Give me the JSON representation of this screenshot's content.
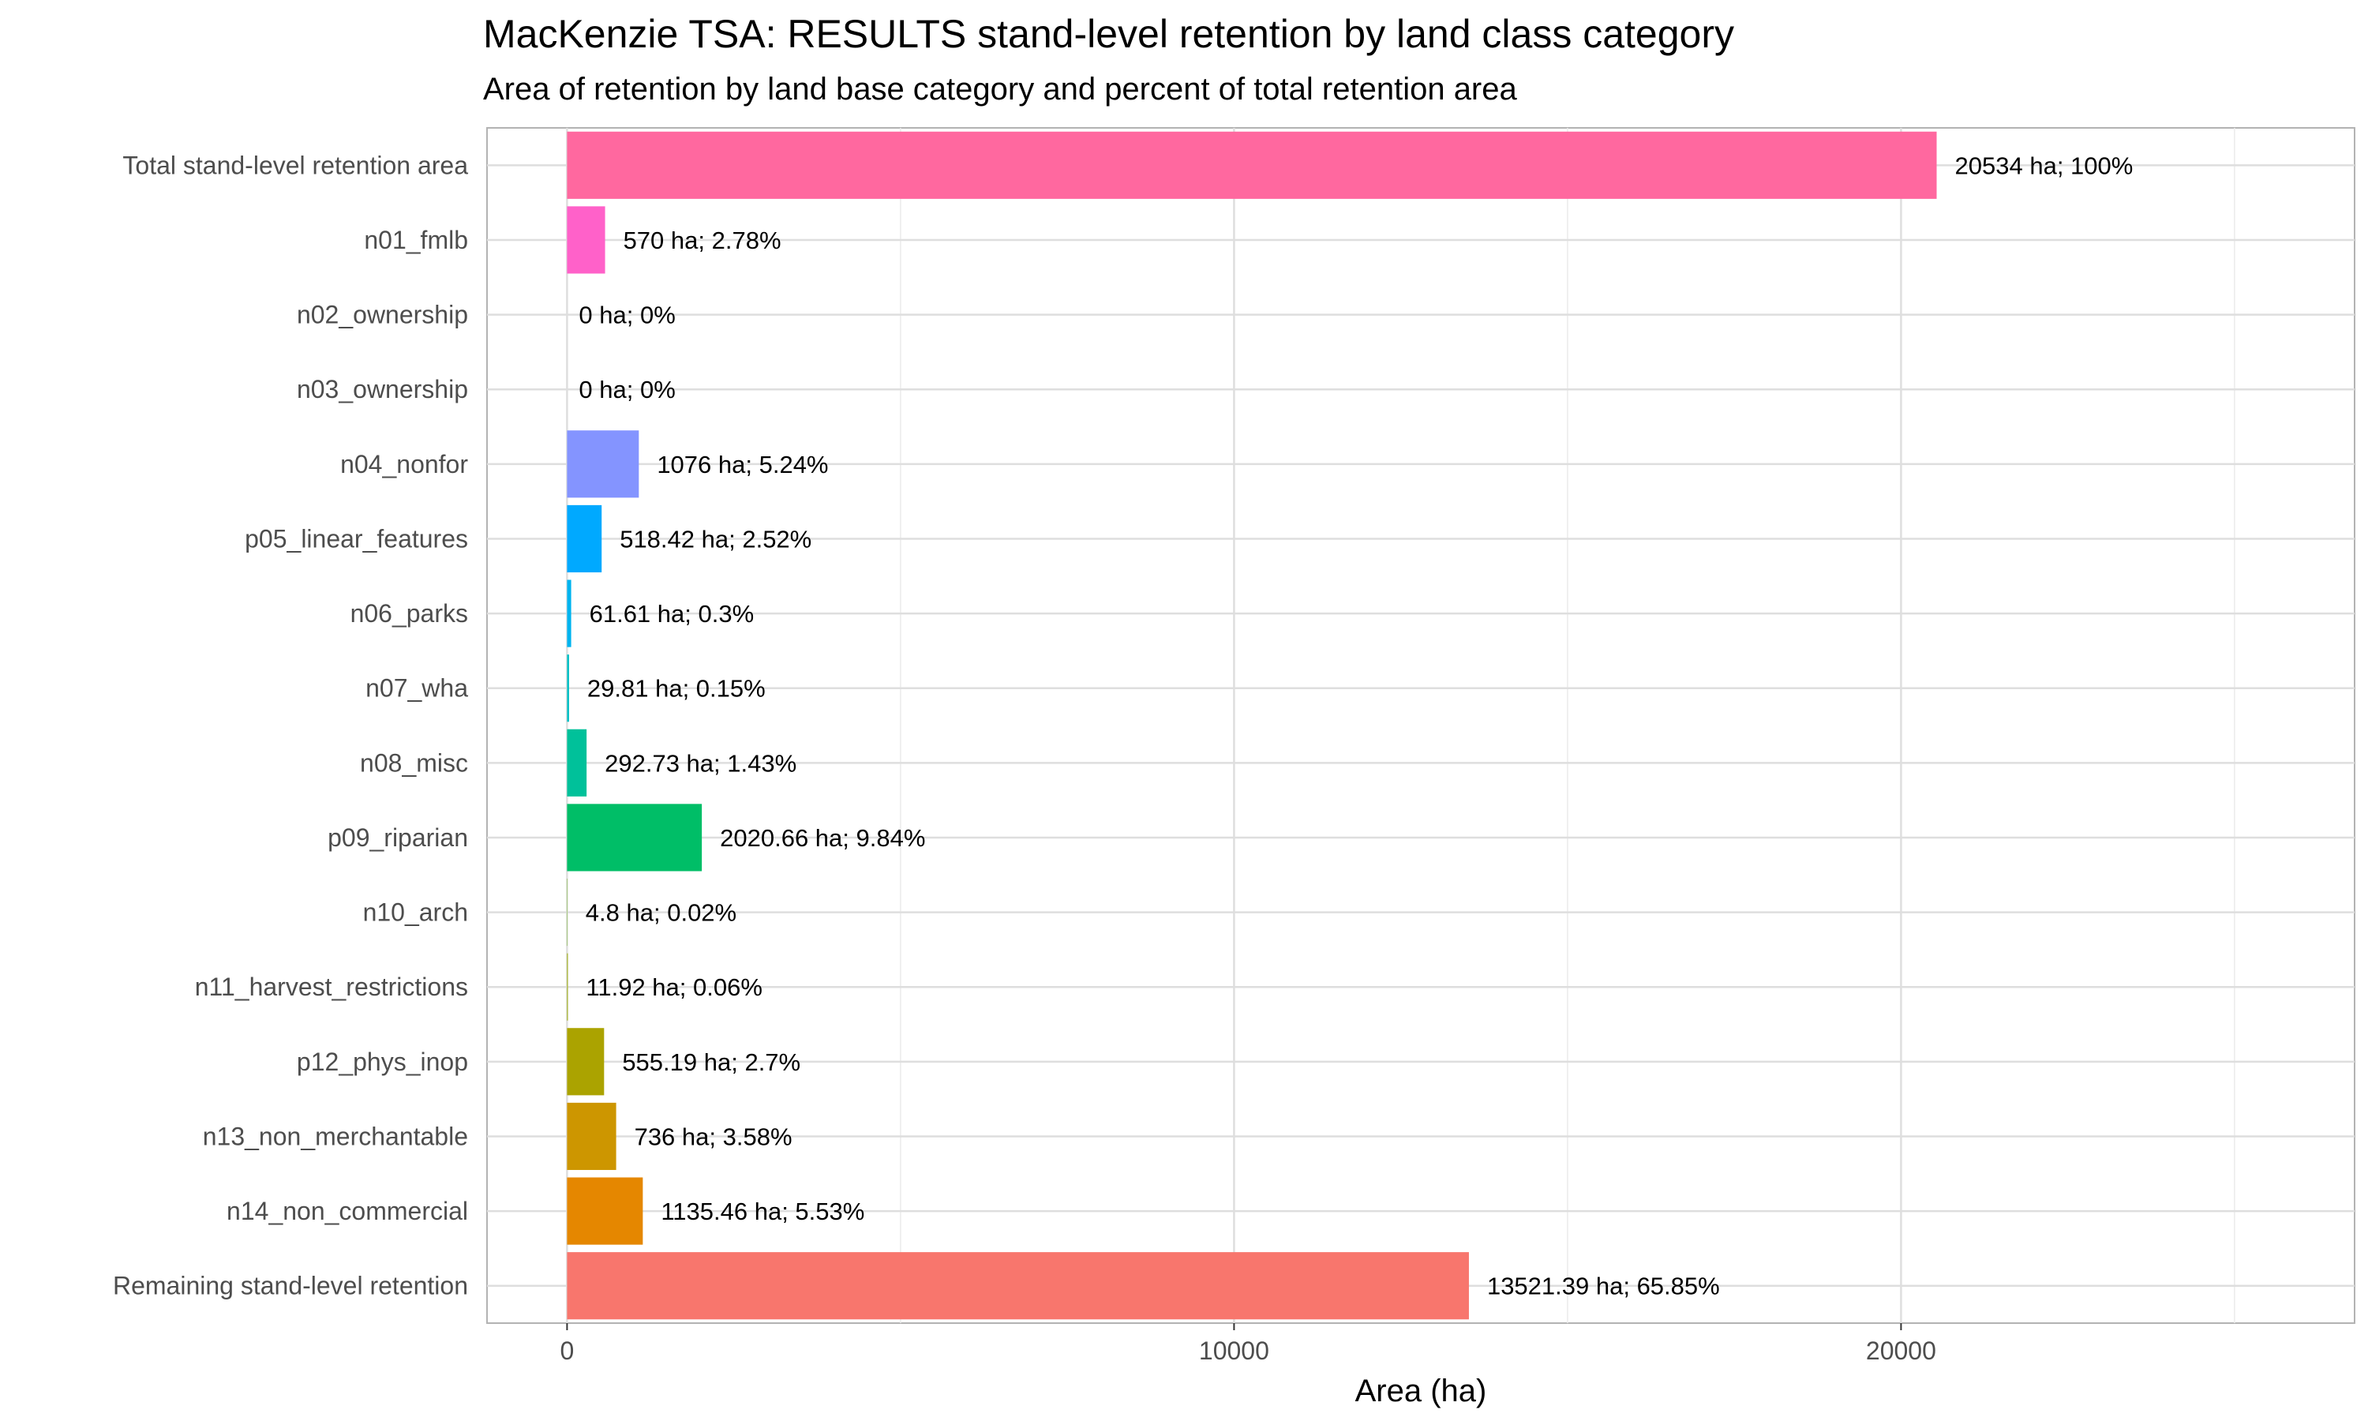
{
  "chart_data": {
    "type": "bar",
    "orientation": "horizontal",
    "title": "MacKenzie TSA: RESULTS stand-level retention by land class category",
    "subtitle": "Area of retention by land base category and percent of total retention area",
    "xlabel": "Area (ha)",
    "ylabel": "",
    "xlim": [
      -1200,
      26800
    ],
    "xticks": [
      0,
      10000,
      20000
    ],
    "xtick_labels": [
      "0",
      "10000",
      "20000"
    ],
    "grid": true,
    "legend": "none",
    "categories": [
      "Total stand-level retention area",
      "n01_fmlb",
      "n02_ownership",
      "n03_ownership",
      "n04_nonfor",
      "p05_linear_features",
      "n06_parks",
      "n07_wha",
      "n08_misc",
      "p09_riparian",
      "n10_arch",
      "n11_harvest_restrictions",
      "p12_phys_inop",
      "n13_non_merchantable",
      "n14_non_commercial",
      "Remaining stand-level retention"
    ],
    "values": [
      20534,
      570,
      0,
      0,
      1076,
      518.42,
      61.61,
      29.81,
      292.73,
      2020.66,
      4.8,
      11.92,
      555.19,
      736,
      1135.46,
      13521.39
    ],
    "data_labels": [
      "20534 ha; 100%",
      "570 ha; 2.78%",
      "0 ha; 0%",
      "0 ha; 0%",
      "1076 ha; 5.24%",
      "518.42 ha; 2.52%",
      "61.61 ha; 0.3%",
      "29.81 ha; 0.15%",
      "292.73 ha; 1.43%",
      "2020.66 ha; 9.84%",
      "4.8 ha; 0.02%",
      "11.92 ha; 0.06%",
      "555.19 ha; 2.7%",
      "736 ha; 3.58%",
      "1135.46 ha; 5.53%",
      "13521.39 ha; 65.85%"
    ],
    "colors": [
      "#FF689F",
      "#FF61C9",
      "#E76BF3",
      "#B983FF",
      "#8494FF",
      "#00A9FF",
      "#00B4EF",
      "#00BFC4",
      "#00C19A",
      "#00BE67",
      "#5EB300",
      "#99A800",
      "#ABA300",
      "#CD9600",
      "#E58700",
      "#F8766D"
    ]
  }
}
